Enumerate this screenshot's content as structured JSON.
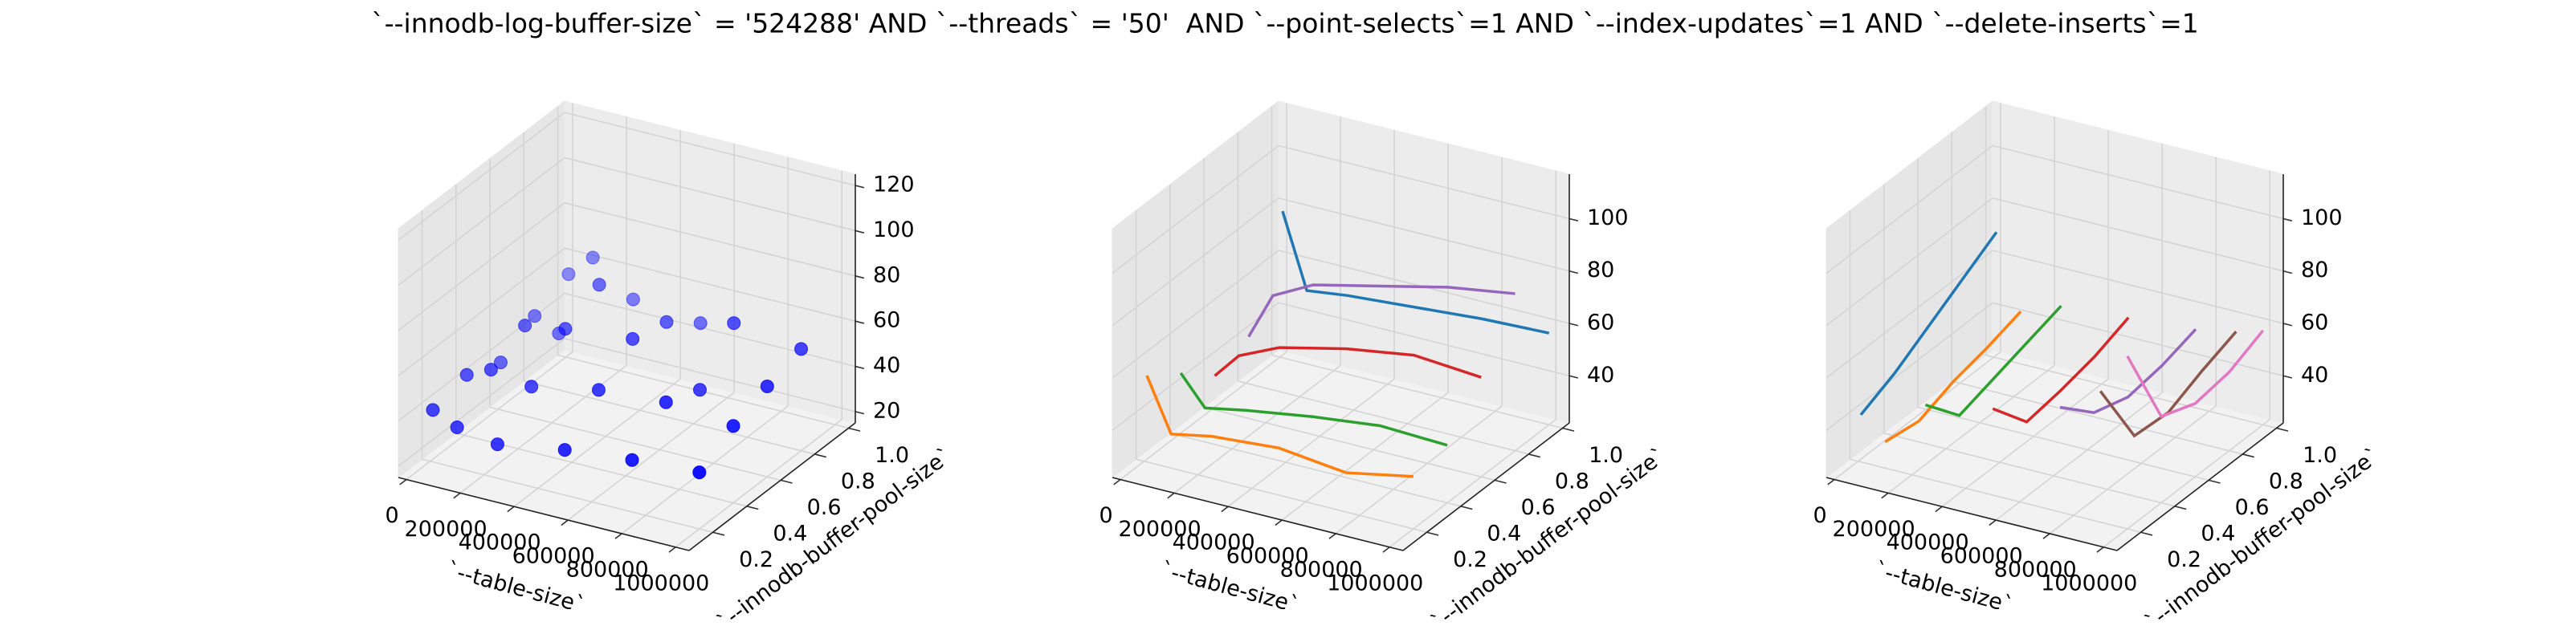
{
  "title": "`--innodb-log-buffer-size` = '524288' AND `--threads` = '50'  AND `--point-selects`=1 AND `--index-updates`=1 AND `--delete-inserts`=1",
  "chart_data": [
    {
      "type": "scatter3d",
      "xlabel": "`--table-size`",
      "ylabel": "`--innodb-buffer-pool-size`",
      "xlim": [
        -30000,
        1050000
      ],
      "ylim": [
        0.06,
        1.04
      ],
      "zlim": [
        15,
        125
      ],
      "xticks": [
        0,
        200000,
        400000,
        600000,
        800000,
        1000000
      ],
      "yticks": [
        0.2,
        0.4,
        0.6,
        0.8,
        {
          "value": 1,
          "label": "1.0"
        }
      ],
      "zticks": [
        20,
        40,
        60,
        80,
        100,
        120
      ],
      "series": [
        {
          "color": "#0000ff",
          "x": [
            10000,
            10000,
            10000,
            10000,
            10000,
            100000,
            100000,
            100000,
            100000,
            100000,
            250000,
            250000,
            250000,
            250000,
            250000,
            500000,
            500000,
            500000,
            500000,
            500000,
            750000,
            750000,
            750000,
            750000,
            1000000,
            1000000,
            1000000,
            1000000
          ],
          "y": [
            0.2,
            0.4,
            0.6,
            0.8,
            1,
            0.2,
            0.4,
            0.6,
            0.8,
            1,
            0.2,
            0.4,
            0.6,
            0.8,
            1,
            0.2,
            0.4,
            0.6,
            0.8,
            1,
            0.2,
            0.4,
            0.6,
            0.8,
            0.2,
            0.4,
            0.6,
            0.8
          ],
          "z": [
            38,
            42,
            36,
            45,
            52,
            33,
            47,
            55,
            40,
            62,
            30,
            44,
            58,
            66,
            48,
            35,
            50,
            61,
            57,
            45,
            38,
            52,
            46,
            64,
            40,
            49,
            55,
            60
          ]
        }
      ]
    },
    {
      "type": "line3d",
      "xlabel": "`--table-size`",
      "ylabel": "`--innodb-buffer-pool-size`",
      "xlim": [
        -30000,
        1050000
      ],
      "ylim": [
        0.06,
        1.04
      ],
      "zlim": [
        22,
        117
      ],
      "xticks": [
        0,
        200000,
        400000,
        600000,
        800000,
        1000000
      ],
      "yticks": [
        0.2,
        0.4,
        0.6,
        0.8,
        {
          "value": 1,
          "label": "1.0"
        }
      ],
      "zticks": [
        40,
        60,
        80,
        100
      ],
      "series": [
        {
          "color": "#1f77b4",
          "x": [
            10000,
            100000,
            250000,
            500000,
            750000,
            1000000
          ],
          "y": [
            1,
            1,
            1,
            1,
            1,
            1
          ],
          "z": [
            78,
            50,
            52,
            54,
            56,
            57
          ]
        },
        {
          "color": "#ff7f0e",
          "x": [
            10000,
            100000,
            250000,
            500000,
            750000,
            1000000
          ],
          "y": [
            0.2,
            0.2,
            0.2,
            0.2,
            0.2,
            0.2
          ],
          "z": [
            55,
            35,
            38,
            40,
            37,
            42
          ]
        },
        {
          "color": "#2ca02c",
          "x": [
            10000,
            100000,
            250000,
            500000,
            750000,
            1000000
          ],
          "y": [
            0.4,
            0.4,
            0.4,
            0.4,
            0.4,
            0.4
          ],
          "z": [
            46,
            35,
            38,
            42,
            45,
            44
          ]
        },
        {
          "color": "#d62728",
          "x": [
            10000,
            100000,
            250000,
            500000,
            750000,
            1000000
          ],
          "y": [
            0.6,
            0.6,
            0.6,
            0.6,
            0.6,
            0.6
          ],
          "z": [
            35,
            45,
            52,
            58,
            62,
            60
          ]
        },
        {
          "color": "#9467bd",
          "x": [
            10000,
            100000,
            250000,
            500000,
            750000,
            1000000
          ],
          "y": [
            0.8,
            0.8,
            0.8,
            0.8,
            0.8,
            0.8
          ],
          "z": [
            40,
            58,
            66,
            72,
            78,
            82
          ]
        }
      ]
    },
    {
      "type": "line3d",
      "xlabel": "`--table-size`",
      "ylabel": "`--innodb-buffer-pool-size`",
      "xlim": [
        -30000,
        1050000
      ],
      "ylim": [
        0.06,
        1.04
      ],
      "zlim": [
        22,
        117
      ],
      "xticks": [
        0,
        200000,
        400000,
        600000,
        800000,
        1000000
      ],
      "yticks": [
        0.2,
        0.4,
        0.6,
        0.8,
        {
          "value": 1,
          "label": "1.0"
        }
      ],
      "zticks": [
        40,
        60,
        80,
        100
      ],
      "series": [
        {
          "color": "#1f77b4",
          "x": [
            10000,
            10000,
            10000,
            10000,
            10000
          ],
          "y": [
            0.2,
            0.4,
            0.6,
            0.8,
            1
          ],
          "z": [
            40,
            46,
            54,
            62,
            70
          ]
        },
        {
          "color": "#ff7f0e",
          "x": [
            100000,
            100000,
            100000,
            100000,
            100000
          ],
          "y": [
            0.2,
            0.4,
            0.6,
            0.8,
            1
          ],
          "z": [
            32,
            30,
            35,
            38,
            42
          ]
        },
        {
          "color": "#2ca02c",
          "x": [
            250000,
            250000,
            250000,
            250000,
            250000
          ],
          "y": [
            0.2,
            0.4,
            0.6,
            0.8,
            1
          ],
          "z": [
            50,
            36,
            40,
            44,
            48
          ]
        },
        {
          "color": "#d62728",
          "x": [
            500000,
            500000,
            500000,
            500000,
            500000
          ],
          "y": [
            0.2,
            0.4,
            0.6,
            0.8,
            1
          ],
          "z": [
            55,
            40,
            42,
            45,
            50
          ]
        },
        {
          "color": "#9467bd",
          "x": [
            750000,
            750000,
            750000,
            750000,
            750000
          ],
          "y": [
            0.2,
            0.4,
            0.6,
            0.8,
            1
          ],
          "z": [
            62,
            50,
            46,
            48,
            52
          ]
        },
        {
          "color": "#8c564b",
          "x": [
            900000,
            900000,
            900000,
            900000,
            900000
          ],
          "y": [
            0.2,
            0.4,
            0.6,
            0.8,
            1
          ],
          "z": [
            72,
            45,
            44,
            50,
            55
          ]
        },
        {
          "color": "#e377c2",
          "x": [
            1000000,
            1000000,
            1000000,
            1000000,
            1000000
          ],
          "y": [
            0.2,
            0.4,
            0.6,
            0.8,
            1
          ],
          "z": [
            88,
            55,
            50,
            52,
            58
          ]
        }
      ]
    }
  ]
}
